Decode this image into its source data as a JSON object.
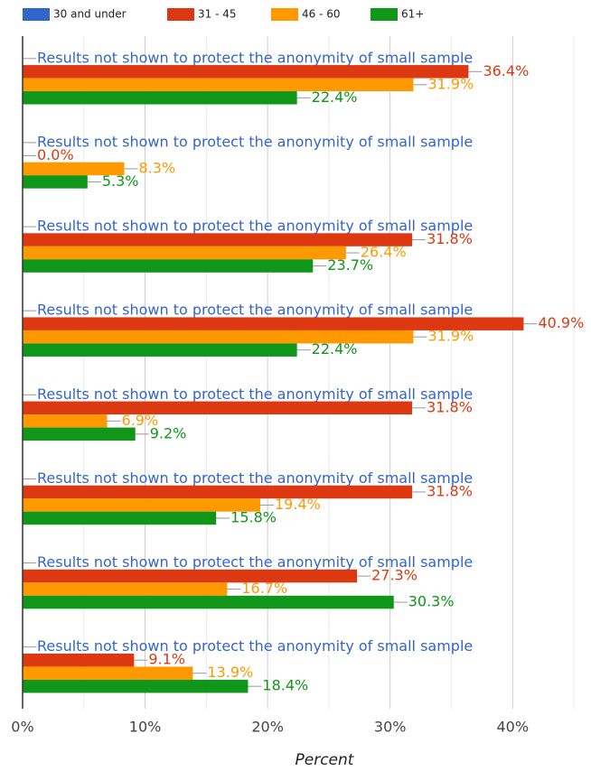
{
  "chart_data": {
    "type": "bar",
    "orientation": "horizontal",
    "x_label": "Percent",
    "categories": [
      null,
      null,
      null,
      null,
      null,
      null,
      null,
      null
    ],
    "series": [
      {
        "name": "30 and under",
        "color": "#3366cc",
        "values": [
          null,
          null,
          null,
          null,
          null,
          null,
          null,
          null
        ],
        "value_labels": [
          "Results not shown to protect the anonymity of small sample",
          "Results not shown to protect the anonymity of small sample",
          "Results not shown to protect the anonymity of small sample",
          "Results not shown to protect the anonymity of small sample",
          "Results not shown to protect the anonymity of small sample",
          "Results not shown to protect the anonymity of small sample",
          "Results not shown to protect the anonymity of small sample",
          "Results not shown to protect the anonymity of small sample"
        ]
      },
      {
        "name": "31 - 45",
        "color": "#dc3912",
        "values": [
          36.4,
          0.0,
          31.8,
          40.9,
          31.8,
          31.8,
          27.3,
          9.1
        ],
        "value_labels": [
          "36.4%",
          "0.0%",
          "31.8%",
          "40.9%",
          "31.8%",
          "31.8%",
          "27.3%",
          "9.1%"
        ]
      },
      {
        "name": "46 - 60",
        "color": "#ff9900",
        "values": [
          31.9,
          8.3,
          26.4,
          31.9,
          6.9,
          19.4,
          16.7,
          13.9
        ],
        "value_labels": [
          "31.9%",
          "8.3%",
          "26.4%",
          "31.9%",
          "6.9%",
          "19.4%",
          "16.7%",
          "13.9%"
        ]
      },
      {
        "name": "61+",
        "color": "#109618",
        "values": [
          22.4,
          5.3,
          23.7,
          22.4,
          9.2,
          15.8,
          30.3,
          18.4
        ],
        "value_labels": [
          "22.4%",
          "5.3%",
          "23.7%",
          "22.4%",
          "9.2%",
          "15.8%",
          "30.3%",
          "18.4%"
        ]
      }
    ],
    "xlim": [
      0,
      46.4
    ],
    "xticks": [
      {
        "value": 0,
        "label": "0%"
      },
      {
        "value": 10,
        "label": "10%"
      },
      {
        "value": 20,
        "label": "20%"
      },
      {
        "value": 30,
        "label": "30%"
      },
      {
        "value": 40,
        "label": "40%"
      }
    ],
    "xminor": [
      5,
      15,
      25,
      35,
      45
    ],
    "grid": true,
    "legend": "top"
  }
}
